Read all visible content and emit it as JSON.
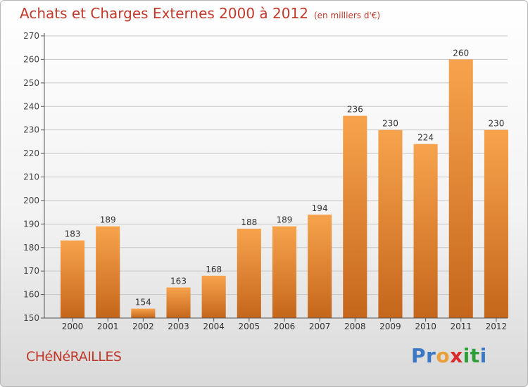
{
  "header": {
    "title": "Achats et Charges Externes 2000 à 2012",
    "unit": "(en milliers d'€)"
  },
  "footer": {
    "commune": "CHéNéRAILLES",
    "logo_letters": [
      {
        "char": "P",
        "color": "#3a77c4"
      },
      {
        "char": "r",
        "color": "#3a77c4"
      },
      {
        "char": "o",
        "color": "#e8a13a"
      },
      {
        "char": "x",
        "color": "#d92b2b"
      },
      {
        "char": "i",
        "color": "#2f9e3a"
      },
      {
        "char": "t",
        "color": "#2f9e3a"
      },
      {
        "char": "i",
        "color": "#3a77c4"
      }
    ]
  },
  "colors": {
    "bar_top": "#f7a34d",
    "bar_bottom": "#c5661b",
    "grid": "#c8c8c8",
    "title": "#c0392b"
  },
  "chart_data": {
    "type": "bar",
    "title": "Achats et Charges Externes 2000 à 2012",
    "subtitle": "(en milliers d'€)",
    "categories": [
      "2000",
      "2001",
      "2002",
      "2003",
      "2004",
      "2005",
      "2006",
      "2007",
      "2008",
      "2009",
      "2010",
      "2011",
      "2012"
    ],
    "values": [
      183,
      189,
      154,
      163,
      168,
      188,
      189,
      194,
      236,
      230,
      224,
      260,
      230
    ],
    "ylim": [
      150,
      270
    ],
    "yticks": [
      150,
      160,
      170,
      180,
      190,
      200,
      210,
      220,
      230,
      240,
      250,
      260,
      270
    ],
    "grid": true
  }
}
